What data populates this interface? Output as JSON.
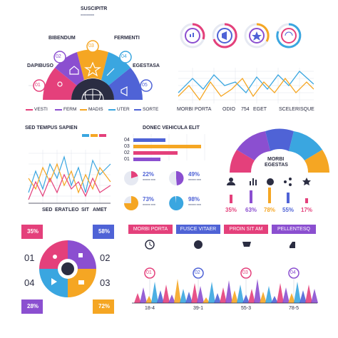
{
  "palette": {
    "blue": "#4f63d6",
    "purple": "#8b4fd0",
    "pink": "#e4407b",
    "orange": "#f5a623",
    "teal": "#3aa6e0",
    "grey": "#e6e9f2",
    "dark": "#2b2d42"
  },
  "panel1": {
    "labels": {
      "top": "SUSCIPITR",
      "left_top": "BIBENDUM",
      "right_top": "FERMENTI",
      "left": "DAPIBUSO",
      "right": "EGESTASA"
    },
    "numbers": [
      "01",
      "02",
      "03",
      "04",
      "05"
    ],
    "legend": [
      "VESTI",
      "FERM",
      "MADIS",
      "UTER",
      "SORTE"
    ]
  },
  "panel2": {
    "x_labels": {
      "a": "MORBI PORTA",
      "b": "ODIO",
      "c": "754",
      "d": "EGET",
      "e": "SCELERISQUE"
    }
  },
  "panel3": {
    "title": "SED TEMPUS SAPIEN",
    "x_labels": [
      "SED",
      "ERAT",
      "LEO",
      "SIT",
      "AMET"
    ]
  },
  "panel4": {
    "title": "DONEC VEHICULA ELIT",
    "bar_labels": [
      "04",
      "03",
      "02",
      "01"
    ],
    "bar_values": [
      0.45,
      0.95,
      0.62,
      0.38
    ],
    "donuts": [
      {
        "label": "22%",
        "value": 22
      },
      {
        "label": "49%",
        "value": 49
      },
      {
        "label": "73%",
        "value": 73
      },
      {
        "label": "98%",
        "value": 98
      }
    ]
  },
  "panel5": {
    "center_label": "MORBI\nEGESTAS",
    "center_line1": "MORBI",
    "center_line2": "EGESTAS",
    "percents": [
      "35%",
      "63%",
      "78%",
      "55%",
      "17%"
    ],
    "bar_heights": [
      0.5,
      0.75,
      0.95,
      0.65,
      0.3
    ]
  },
  "panel6": {
    "percents": [
      "35%",
      "58%",
      "28%",
      "72%"
    ],
    "numbers": [
      "01",
      "02",
      "03",
      "04"
    ]
  },
  "panel7": {
    "headers": [
      "MORBI PORTA",
      "FUSCE VITAER",
      "PROIN SIT AM",
      "PELLENTESQ"
    ],
    "numbers": [
      "01",
      "02",
      "03",
      "04"
    ],
    "x_labels": [
      "18-4",
      "39-1",
      "55-3",
      "78-5"
    ]
  },
  "icons": [
    "home-icon",
    "pin-icon",
    "star-icon",
    "pencil-icon",
    "megaphone-icon",
    "globe-icon",
    "money-icon",
    "share-icon",
    "user-icon",
    "clock-icon",
    "info-icon",
    "cart-icon",
    "thumb-icon",
    "flag-icon",
    "send-icon",
    "chat-icon"
  ]
}
